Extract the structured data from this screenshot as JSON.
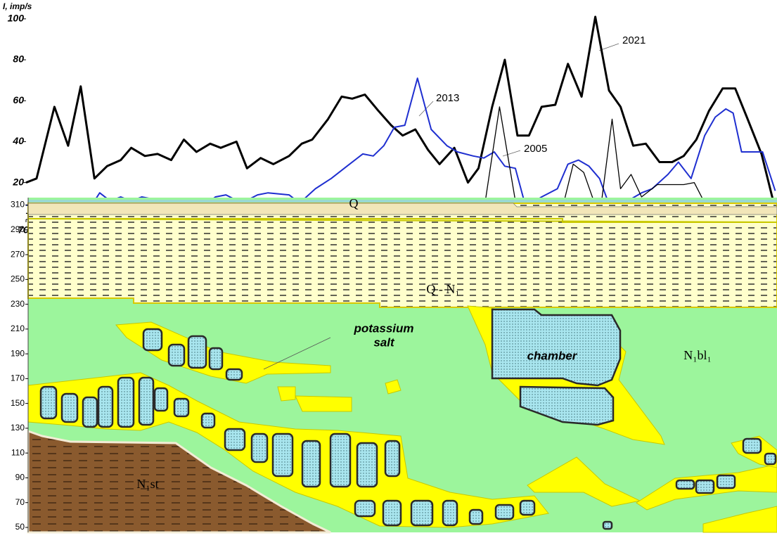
{
  "chart_data": [
    {
      "type": "line",
      "ylabel": "I, imp/s",
      "xlim": [
        700,
        1413
      ],
      "xticks": [
        700,
        750,
        800,
        850,
        900,
        950,
        1000,
        1050,
        1100,
        1150,
        1200,
        1250,
        1300,
        1350,
        1400
      ],
      "ylim": [
        2,
        102
      ],
      "yticks": [
        20,
        40,
        60,
        80,
        100
      ],
      "series": [
        {
          "name": "2021",
          "color": "#000000",
          "x": [
            700,
            710,
            727,
            740,
            752,
            765,
            777,
            790,
            800,
            813,
            825,
            838,
            850,
            862,
            875,
            885,
            900,
            910,
            923,
            935,
            950,
            962,
            972,
            987,
            1000,
            1010,
            1022,
            1035,
            1047,
            1058,
            1070,
            1082,
            1093,
            1107,
            1120,
            1130,
            1143,
            1155,
            1167,
            1178,
            1190,
            1203,
            1215,
            1228,
            1241,
            1254,
            1265,
            1277,
            1289,
            1302,
            1314,
            1325,
            1337,
            1349,
            1362,
            1374,
            1385,
            1399,
            1412
          ],
          "values": [
            20,
            22,
            57,
            38,
            67,
            22,
            28,
            31,
            37,
            33,
            34,
            31,
            41,
            35,
            39,
            37,
            40,
            27,
            32,
            29,
            33,
            39,
            41,
            51,
            62,
            61,
            63,
            55,
            48,
            43,
            46,
            36,
            29,
            37,
            20,
            27,
            57,
            80,
            43,
            43,
            57,
            58,
            78,
            62,
            101,
            65,
            57,
            38,
            39,
            30,
            30,
            33,
            41,
            55,
            66,
            66,
            52,
            34,
            7
          ]
        },
        {
          "name": "2013",
          "color": "#1f2fd0",
          "x": [
            700,
            715,
            725,
            760,
            770,
            780,
            790,
            800,
            810,
            830,
            845,
            870,
            880,
            890,
            905,
            920,
            930,
            950,
            960,
            975,
            990,
            1005,
            1020,
            1030,
            1040,
            1050,
            1060,
            1072,
            1085,
            1100,
            1110,
            1125,
            1135,
            1145,
            1155,
            1165,
            1175,
            1190,
            1205,
            1215,
            1225,
            1235,
            1245,
            1255,
            1265,
            1275,
            1285,
            1295,
            1310,
            1320,
            1332,
            1345,
            1355,
            1365,
            1372,
            1380,
            1400,
            1412
          ],
          "values": [
            9,
            8,
            9,
            7,
            15,
            11,
            13,
            11,
            13,
            11,
            9,
            9,
            13,
            14,
            10,
            14,
            15,
            14,
            10,
            17,
            22,
            28,
            34,
            33,
            38,
            47,
            48,
            71,
            46,
            38,
            35,
            33,
            32,
            35,
            28,
            27,
            8,
            13,
            17,
            29,
            31,
            28,
            22,
            8,
            12,
            12,
            15,
            17,
            24,
            30,
            22,
            43,
            52,
            56,
            54,
            35,
            35,
            16
          ]
        },
        {
          "name": "2005",
          "color": "#000000",
          "x": [
            700,
            720,
            750,
            770,
            790,
            800,
            820,
            850,
            880,
            900,
            920,
            940,
            960,
            980,
            1000,
            1010,
            1020,
            1040,
            1050,
            1070,
            1085,
            1100,
            1110,
            1125,
            1135,
            1150,
            1167,
            1180,
            1200,
            1210,
            1220,
            1230,
            1245,
            1257,
            1265,
            1275,
            1285,
            1300,
            1325,
            1335,
            1350,
            1370,
            1390,
            1410
          ],
          "values": [
            5,
            4,
            5,
            3,
            4,
            5,
            3,
            6,
            4,
            3,
            4,
            3,
            6,
            5,
            4,
            5,
            4,
            4,
            3,
            9,
            4,
            6,
            7,
            6,
            6,
            57,
            5,
            4,
            4,
            8,
            29,
            25,
            3,
            51,
            17,
            24,
            13,
            19,
            19,
            20,
            5,
            4,
            4,
            5
          ]
        }
      ]
    },
    {
      "type": "cross-section",
      "ylim": [
        46,
        316
      ],
      "yticks": [
        50,
        70,
        90,
        110,
        130,
        150,
        170,
        190,
        210,
        230,
        250,
        270,
        290,
        310
      ],
      "labels": {
        "q": "Q",
        "q_n1": "Q - N₁",
        "potassium_salt": [
          "potassium",
          "salt"
        ],
        "chamber": "chamber",
        "n1bl1": "N₁bl₁",
        "n1st": "N₁st"
      }
    }
  ]
}
